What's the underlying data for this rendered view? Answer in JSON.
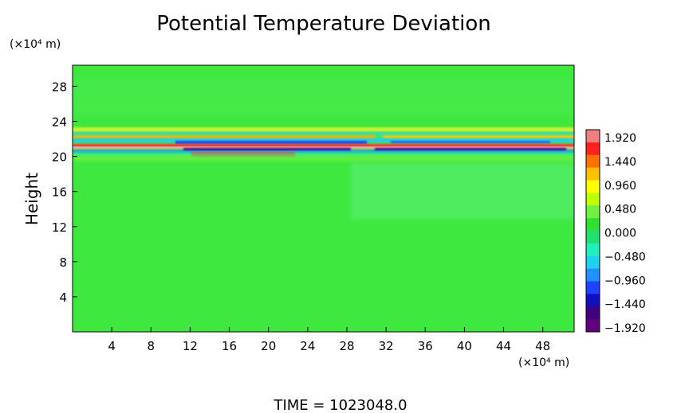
{
  "chart_data": {
    "type": "heatmap",
    "title": "Potential Temperature Deviation",
    "ylabel": "Height",
    "xlabel": "",
    "y_unit": "(×10⁴ m)",
    "x_unit": "(×10⁴ m)",
    "xlim": [
      0,
      51.2
    ],
    "ylim": [
      0,
      30.4
    ],
    "x_ticks": [
      4,
      8,
      12,
      16,
      20,
      24,
      28,
      32,
      36,
      40,
      44,
      48
    ],
    "y_ticks": [
      4,
      8,
      12,
      16,
      20,
      24,
      28
    ],
    "colorbar_labels": [
      "1.920",
      "1.440",
      "0.960",
      "0.480",
      "0.000",
      "−0.480",
      "−0.960",
      "−1.440",
      "−1.920"
    ],
    "colorbar_colors": [
      "#f08080",
      "#ff2020",
      "#ff7000",
      "#ffc000",
      "#ffff00",
      "#c0ff00",
      "#70f040",
      "#30e030",
      "#20e070",
      "#20f0c0",
      "#20d0f0",
      "#2090ff",
      "#2040ff",
      "#1010c0",
      "#400080",
      "#600080"
    ],
    "footer": "TIME = 1023048.0",
    "background_color": "#3ee83e"
  }
}
